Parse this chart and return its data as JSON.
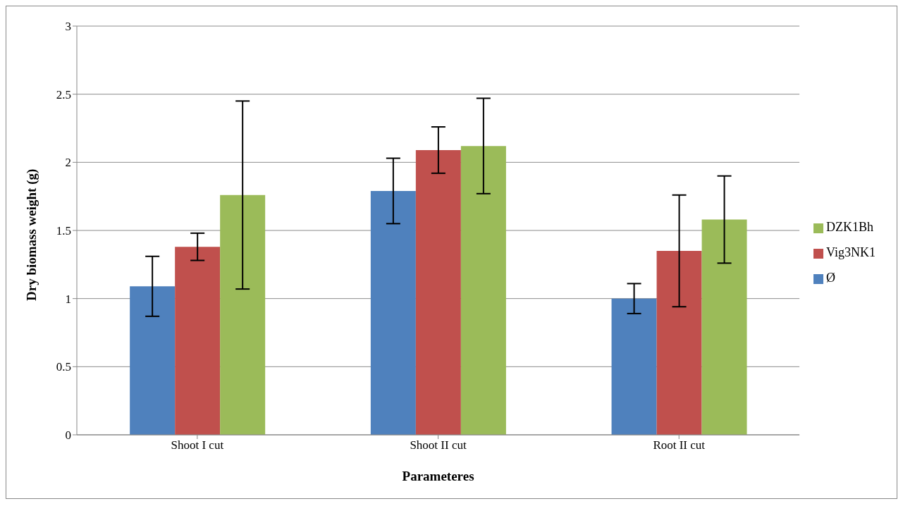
{
  "chart_data": {
    "type": "bar",
    "xlabel": "Parameteres",
    "ylabel": "Dry biomass weight (g)",
    "categories": [
      "Shoot I cut",
      "Shoot II cut",
      "Root II cut"
    ],
    "series": [
      {
        "name": "Ø",
        "color": "#4f81bd",
        "values": [
          1.09,
          1.79,
          1.0
        ],
        "errors": [
          0.22,
          0.24,
          0.11
        ]
      },
      {
        "name": "Vig3NK1",
        "color": "#c0504d",
        "values": [
          1.38,
          2.09,
          1.35
        ],
        "errors": [
          0.1,
          0.17,
          0.41
        ]
      },
      {
        "name": "DZK1Bh",
        "color": "#9bbb59",
        "values": [
          1.76,
          2.12,
          1.58
        ],
        "errors": [
          0.69,
          0.35,
          0.32
        ]
      }
    ],
    "ylim": [
      0,
      3
    ],
    "yticks": [
      0,
      0.5,
      1,
      1.5,
      2,
      2.5,
      3
    ],
    "grid": "y",
    "legend": "right"
  }
}
